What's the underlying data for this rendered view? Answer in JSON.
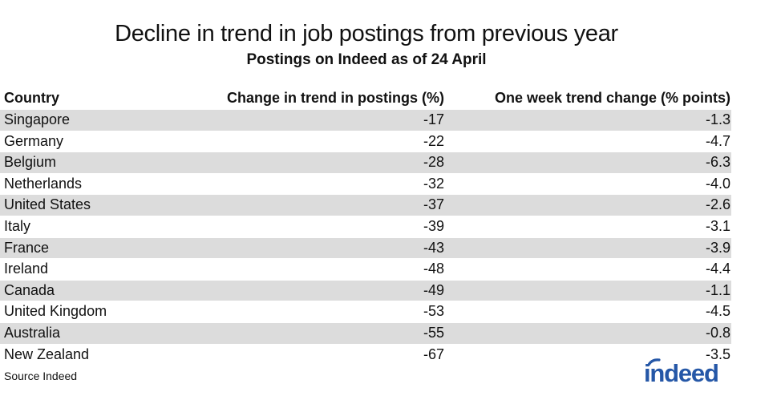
{
  "chart_data": {
    "type": "table",
    "title": "Decline in trend in job postings from previous year",
    "subtitle": "Postings on Indeed as of 24 April",
    "columns": [
      "Country",
      "Change in trend in postings (%)",
      "One week trend change (% points)"
    ],
    "rows": [
      [
        "Singapore",
        "-17",
        "-1.3"
      ],
      [
        "Germany",
        "-22",
        "-4.7"
      ],
      [
        "Belgium",
        "-28",
        "-6.3"
      ],
      [
        "Netherlands",
        "-32",
        "-4.0"
      ],
      [
        "United States",
        "-37",
        "-2.6"
      ],
      [
        "Italy",
        "-39",
        "-3.1"
      ],
      [
        "France",
        "-43",
        "-3.9"
      ],
      [
        "Ireland",
        "-48",
        "-4.4"
      ],
      [
        "Canada",
        "-49",
        "-1.1"
      ],
      [
        "United Kingdom",
        "-53",
        "-4.5"
      ],
      [
        "Australia",
        "-55",
        "-0.8"
      ],
      [
        "New Zealand",
        "-67",
        "-3.5"
      ]
    ],
    "row_shading": "alternating gray"
  },
  "footer": {
    "source": "Source Indeed",
    "logo_text": "indeed"
  },
  "colors": {
    "row_shade": "#dcdcdc",
    "brand_blue": "#2557a7"
  }
}
